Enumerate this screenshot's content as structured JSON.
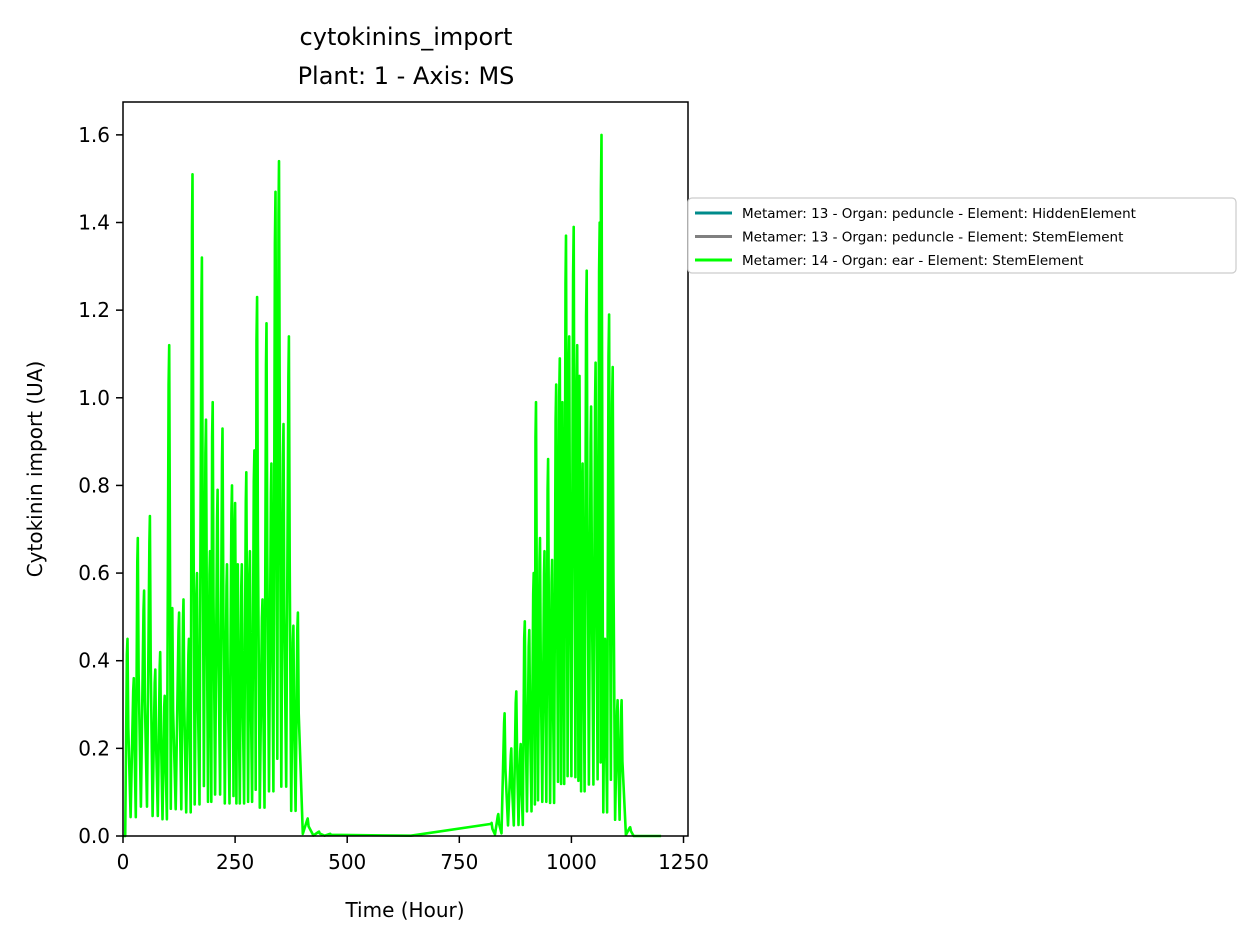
{
  "chart_data": {
    "type": "line",
    "title": "cytokinins_import",
    "subtitle": "Plant: 1 - Axis: MS",
    "xlabel": "Time (Hour)",
    "ylabel": "Cytokinin import (UA)",
    "xlim": [
      0,
      1260
    ],
    "ylim": [
      0,
      1.675
    ],
    "xticks": [
      0,
      250,
      500,
      750,
      1000,
      1250
    ],
    "xtick_labels": [
      "0",
      "250",
      "500",
      "750",
      "1000",
      "1250"
    ],
    "yticks": [
      0.0,
      0.2,
      0.4,
      0.6,
      0.8,
      1.0,
      1.2,
      1.4,
      1.6
    ],
    "ytick_labels": [
      "0.0",
      "0.2",
      "0.4",
      "0.6",
      "0.8",
      "1.0",
      "1.2",
      "1.4",
      "1.6"
    ],
    "grid": false,
    "legend_placement": "outside right, upper",
    "series": [
      {
        "name": "Metamer: 13 - Organ: peduncle - Element: HiddenElement",
        "color": "#008b8b",
        "x": [],
        "y": []
      },
      {
        "name": "Metamer: 13 - Organ: peduncle - Element: StemElement",
        "color": "#808080",
        "x": [],
        "y": []
      },
      {
        "name": "Metamer: 14 - Organ: ear - Element: StemElement",
        "color": "#00ff00",
        "peaks": [
          [
            10,
            0.45
          ],
          [
            24,
            0.36
          ],
          [
            33,
            0.68
          ],
          [
            47,
            0.56
          ],
          [
            60,
            0.73
          ],
          [
            72,
            0.38
          ],
          [
            83,
            0.42
          ],
          [
            93,
            0.32
          ],
          [
            103,
            1.12
          ],
          [
            110,
            0.52
          ],
          [
            125,
            0.51
          ],
          [
            135,
            0.54
          ],
          [
            147,
            0.45
          ],
          [
            155,
            1.51
          ],
          [
            165,
            0.6
          ],
          [
            176,
            1.32
          ],
          [
            185,
            0.95
          ],
          [
            194,
            0.65
          ],
          [
            200,
            0.99
          ],
          [
            211,
            0.79
          ],
          [
            222,
            0.93
          ],
          [
            232,
            0.62
          ],
          [
            243,
            0.8
          ],
          [
            250,
            0.76
          ],
          [
            256,
            0.62
          ],
          [
            265,
            0.62
          ],
          [
            275,
            0.83
          ],
          [
            283,
            0.65
          ],
          [
            293,
            0.88
          ],
          [
            299,
            1.23
          ],
          [
            311,
            0.54
          ],
          [
            320,
            1.17
          ],
          [
            331,
            0.85
          ],
          [
            340,
            1.47
          ],
          [
            348,
            1.54
          ],
          [
            358,
            0.94
          ],
          [
            370,
            1.14
          ],
          [
            380,
            0.48
          ],
          [
            390,
            0.51
          ],
          [
            412,
            0.04
          ],
          [
            437,
            0.01
          ],
          [
            462,
            0.005
          ],
          [
            822,
            0.03
          ],
          [
            837,
            0.05
          ],
          [
            851,
            0.28
          ],
          [
            866,
            0.2
          ],
          [
            877,
            0.33
          ],
          [
            887,
            0.21
          ],
          [
            896,
            0.49
          ],
          [
            906,
            0.47
          ],
          [
            916,
            0.6
          ],
          [
            921,
            0.99
          ],
          [
            930,
            0.68
          ],
          [
            940,
            0.65
          ],
          [
            948,
            0.86
          ],
          [
            957,
            0.63
          ],
          [
            966,
            1.03
          ],
          [
            974,
            1.09
          ],
          [
            980,
            0.99
          ],
          [
            988,
            1.37
          ],
          [
            995,
            1.14
          ],
          [
            1005,
            1.39
          ],
          [
            1013,
            1.12
          ],
          [
            1018,
            1.05
          ],
          [
            1025,
            0.85
          ],
          [
            1034,
            1.29
          ],
          [
            1044,
            0.98
          ],
          [
            1054,
            1.08
          ],
          [
            1063,
            1.4
          ],
          [
            1067,
            1.6
          ],
          [
            1075,
            0.45
          ],
          [
            1084,
            1.19
          ],
          [
            1092,
            1.07
          ],
          [
            1103,
            0.31
          ],
          [
            1112,
            0.31
          ],
          [
            1131,
            0.02
          ]
        ],
        "x_end": 1200
      }
    ]
  }
}
